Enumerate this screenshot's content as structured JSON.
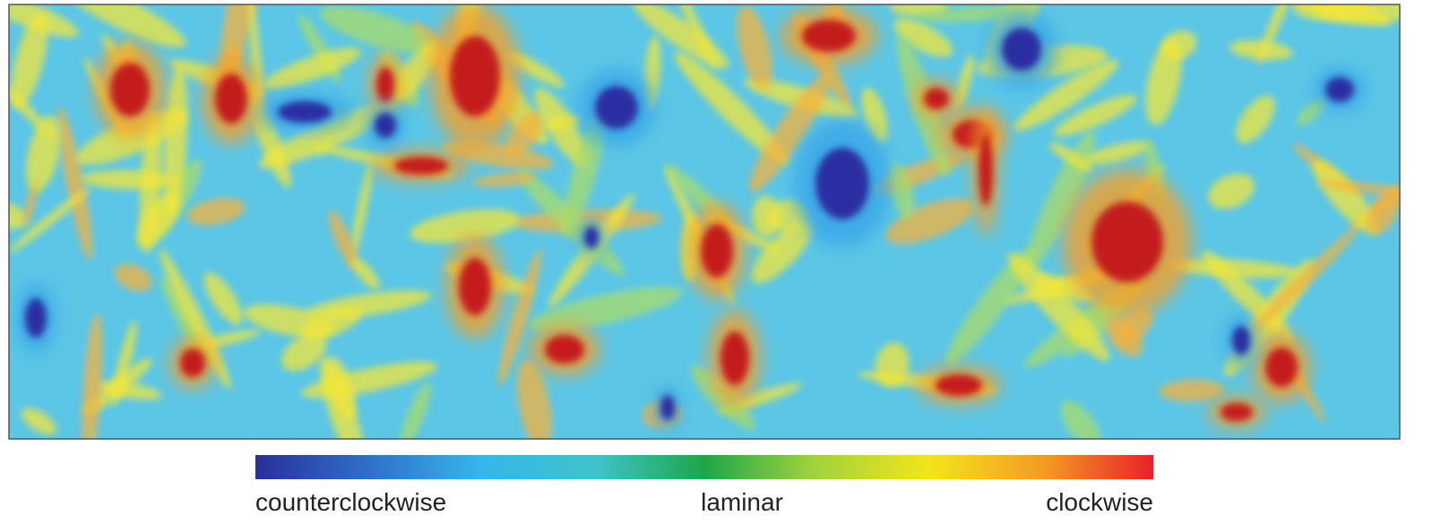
{
  "colorbar": {
    "labels": [
      "counterclockwise",
      "laminar",
      "clockwise"
    ]
  }
}
